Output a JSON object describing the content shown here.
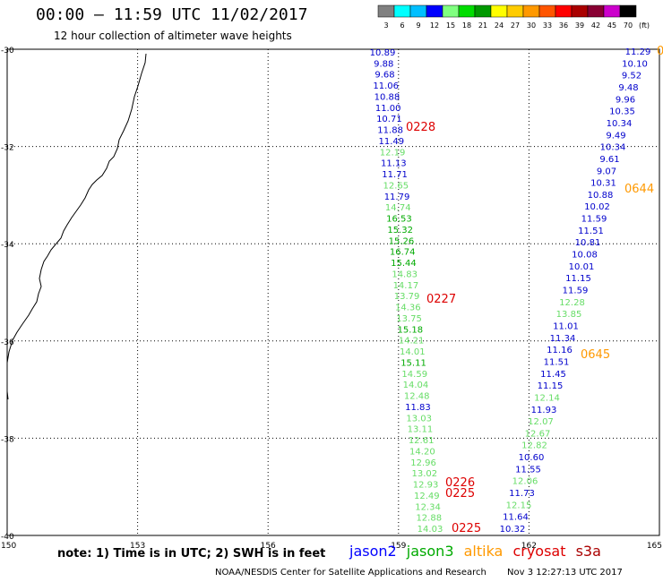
{
  "header": {
    "title": "00:00 – 11:59 UTC 11/02/2017",
    "subtitle": "12 hour collection of altimeter wave heights"
  },
  "scale": {
    "labels": [
      "3",
      "6",
      "9",
      "12",
      "15",
      "18",
      "21",
      "24",
      "27",
      "30",
      "33",
      "36",
      "39",
      "42",
      "45",
      "70",
      "(ft)"
    ],
    "colors": [
      "#808080",
      "#00ffff",
      "#00bfff",
      "#0000ff",
      "#80ff80",
      "#00dd00",
      "#009900",
      "#ffff00",
      "#ffcc00",
      "#ff9900",
      "#ff5500",
      "#ff0000",
      "#aa0000",
      "#880033",
      "#cc00cc",
      "#000000"
    ]
  },
  "axes": {
    "lon_labels": [
      "150",
      "153",
      "156",
      "159",
      "162",
      "165"
    ],
    "lat_labels": [
      "-30",
      "-32",
      "-34",
      "-36",
      "-38",
      "-40"
    ]
  },
  "tracks": {
    "left": [
      {
        "v": "10.89",
        "c": "#0000cc"
      },
      {
        "v": "9.88",
        "c": "#0000cc"
      },
      {
        "v": "9.68",
        "c": "#0000cc"
      },
      {
        "v": "11.06",
        "c": "#0000cc"
      },
      {
        "v": "10.88",
        "c": "#0000cc"
      },
      {
        "v": "11.00",
        "c": "#0000cc"
      },
      {
        "v": "10.71",
        "c": "#0000cc"
      },
      {
        "v": "11.88",
        "c": "#0000cc"
      },
      {
        "v": "11.49",
        "c": "#0000cc"
      },
      {
        "v": "12.19",
        "c": "#66dd66"
      },
      {
        "v": "11.13",
        "c": "#0000cc"
      },
      {
        "v": "11.71",
        "c": "#0000cc"
      },
      {
        "v": "12.65",
        "c": "#66dd66"
      },
      {
        "v": "11.79",
        "c": "#0000cc"
      },
      {
        "v": "14.74",
        "c": "#66dd66"
      },
      {
        "v": "16.53",
        "c": "#00aa00"
      },
      {
        "v": "15.32",
        "c": "#00aa00"
      },
      {
        "v": "15.26",
        "c": "#00aa00"
      },
      {
        "v": "16.74",
        "c": "#00aa00"
      },
      {
        "v": "15.44",
        "c": "#00aa00"
      },
      {
        "v": "14.83",
        "c": "#66dd66"
      },
      {
        "v": "14.17",
        "c": "#66dd66"
      },
      {
        "v": "13.79",
        "c": "#66dd66"
      },
      {
        "v": "14.36",
        "c": "#66dd66"
      },
      {
        "v": "13.75",
        "c": "#66dd66"
      },
      {
        "v": "15.18",
        "c": "#00aa00"
      },
      {
        "v": "14.21",
        "c": "#66dd66"
      },
      {
        "v": "14.01",
        "c": "#66dd66"
      },
      {
        "v": "15.11",
        "c": "#00aa00"
      },
      {
        "v": "14.59",
        "c": "#66dd66"
      },
      {
        "v": "14.04",
        "c": "#66dd66"
      },
      {
        "v": "12.48",
        "c": "#66dd66"
      },
      {
        "v": "11.83",
        "c": "#0000cc"
      },
      {
        "v": "13.03",
        "c": "#66dd66"
      },
      {
        "v": "13.11",
        "c": "#66dd66"
      },
      {
        "v": "12.61",
        "c": "#66dd66"
      },
      {
        "v": "14.20",
        "c": "#66dd66"
      },
      {
        "v": "12.96",
        "c": "#66dd66"
      },
      {
        "v": "13.02",
        "c": "#66dd66"
      },
      {
        "v": "12.93",
        "c": "#66dd66"
      },
      {
        "v": "12.49",
        "c": "#66dd66"
      },
      {
        "v": "12.34",
        "c": "#66dd66"
      },
      {
        "v": "12.88",
        "c": "#66dd66"
      },
      {
        "v": "14.03",
        "c": "#66dd66"
      }
    ],
    "right": [
      {
        "v": "11.29",
        "c": "#0000cc"
      },
      {
        "v": "10.10",
        "c": "#0000cc"
      },
      {
        "v": "9.52",
        "c": "#0000cc"
      },
      {
        "v": "9.48",
        "c": "#0000cc"
      },
      {
        "v": "9.96",
        "c": "#0000cc"
      },
      {
        "v": "10.35",
        "c": "#0000cc"
      },
      {
        "v": "10.34",
        "c": "#0000cc"
      },
      {
        "v": "9.49",
        "c": "#0000cc"
      },
      {
        "v": "10.34",
        "c": "#0000cc"
      },
      {
        "v": "9.61",
        "c": "#0000cc"
      },
      {
        "v": "9.07",
        "c": "#0000cc"
      },
      {
        "v": "10.31",
        "c": "#0000cc"
      },
      {
        "v": "10.88",
        "c": "#0000cc"
      },
      {
        "v": "10.02",
        "c": "#0000cc"
      },
      {
        "v": "11.59",
        "c": "#0000cc"
      },
      {
        "v": "11.51",
        "c": "#0000cc"
      },
      {
        "v": "10.81",
        "c": "#0000cc"
      },
      {
        "v": "10.08",
        "c": "#0000cc"
      },
      {
        "v": "10.01",
        "c": "#0000cc"
      },
      {
        "v": "11.15",
        "c": "#0000cc"
      },
      {
        "v": "11.59",
        "c": "#0000cc"
      },
      {
        "v": "12.28",
        "c": "#66dd66"
      },
      {
        "v": "13.85",
        "c": "#66dd66"
      },
      {
        "v": "11.01",
        "c": "#0000cc"
      },
      {
        "v": "11.34",
        "c": "#0000cc"
      },
      {
        "v": "11.16",
        "c": "#0000cc"
      },
      {
        "v": "11.51",
        "c": "#0000cc"
      },
      {
        "v": "11.45",
        "c": "#0000cc"
      },
      {
        "v": "11.15",
        "c": "#0000cc"
      },
      {
        "v": "12.14",
        "c": "#66dd66"
      },
      {
        "v": "11.93",
        "c": "#0000cc"
      },
      {
        "v": "12.07",
        "c": "#66dd66"
      },
      {
        "v": "12.67",
        "c": "#66dd66"
      },
      {
        "v": "12.82",
        "c": "#66dd66"
      },
      {
        "v": "10.60",
        "c": "#0000cc"
      },
      {
        "v": "11.55",
        "c": "#0000cc"
      },
      {
        "v": "12.06",
        "c": "#66dd66"
      },
      {
        "v": "11.73",
        "c": "#0000cc"
      },
      {
        "v": "12.15",
        "c": "#66dd66"
      },
      {
        "v": "11.64",
        "c": "#0000cc"
      },
      {
        "v": "10.32",
        "c": "#0000cc"
      }
    ]
  },
  "pass_times": [
    {
      "t": "0228",
      "c": "#dd0000"
    },
    {
      "t": "0227",
      "c": "#dd0000"
    },
    {
      "t": "0226",
      "c": "#dd0000"
    },
    {
      "t": "0225",
      "c": "#dd0000"
    },
    {
      "t": "0225",
      "c": "#dd0000"
    },
    {
      "t": "0644",
      "c": "#ff9900"
    },
    {
      "t": "0645",
      "c": "#ff9900"
    },
    {
      "t": "0",
      "c": "#ff9900"
    }
  ],
  "footer": {
    "note": "note: 1) Time is in UTC; 2) SWH is in feet",
    "legend": [
      {
        "name": "jason2",
        "color": "#0000ff"
      },
      {
        "name": "jason3",
        "color": "#00aa00"
      },
      {
        "name": "altika",
        "color": "#ff9900"
      },
      {
        "name": "cryosat",
        "color": "#dd0000"
      },
      {
        "name": "s3a",
        "color": "#aa0000"
      }
    ],
    "credit": "NOAA/NESDIS Center for Satellite Applications and Research",
    "timestamp": "Nov  3 12:27:13 UTC 2017"
  }
}
